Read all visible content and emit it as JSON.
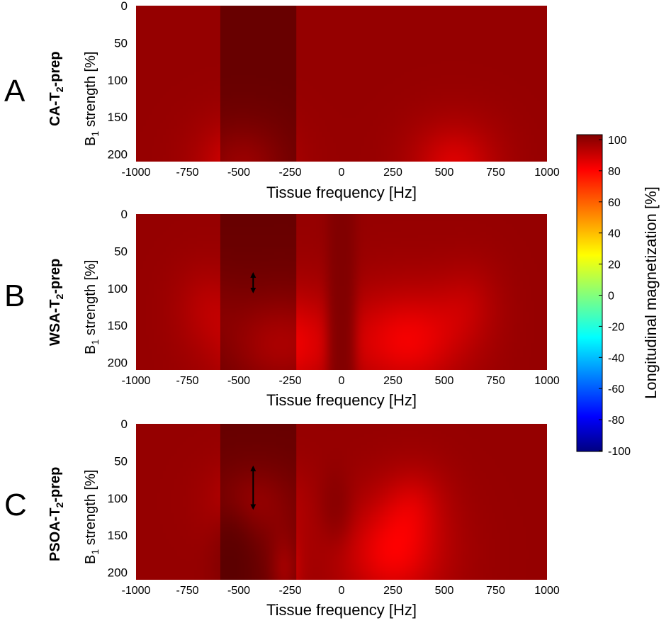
{
  "chart_data": [
    {
      "type": "heatmap",
      "panel_letter": "A",
      "row_label": {
        "main": "CA-T",
        "sub": "2",
        "suffix": "-prep"
      },
      "ylabel": {
        "main": "B",
        "sub": "1",
        "suffix": " strength [%]"
      },
      "xlabel": "Tissue frequency [Hz]",
      "xlim": [
        -1000,
        1000
      ],
      "ylim": [
        210,
        0
      ],
      "x_ticks": [
        -1000,
        -750,
        -500,
        -250,
        0,
        250,
        500,
        750,
        1000
      ],
      "y_ticks": [
        0,
        50,
        100,
        150,
        200
      ],
      "shaded_band_x": [
        -590,
        -220
      ],
      "arrow": null,
      "z_unit": "Longitudinal magnetization [%]",
      "features": [
        {
          "x": -480,
          "y": 215,
          "sx": 260,
          "sy": 70,
          "amp": -1.28
        },
        {
          "x": 550,
          "y": 215,
          "sx": 260,
          "sy": 70,
          "amp": -1.28
        }
      ]
    },
    {
      "type": "heatmap",
      "panel_letter": "B",
      "row_label": {
        "main": "WSA-T",
        "sub": "2",
        "suffix": "-prep"
      },
      "ylabel": {
        "main": "B",
        "sub": "1",
        "suffix": " strength [%]"
      },
      "xlabel": "Tissue frequency [Hz]",
      "xlim": [
        -1000,
        1000
      ],
      "ylim": [
        210,
        0
      ],
      "x_ticks": [
        -1000,
        -750,
        -500,
        -250,
        0,
        250,
        500,
        750,
        1000
      ],
      "y_ticks": [
        0,
        50,
        100,
        150,
        200
      ],
      "shaded_band_x": [
        -590,
        -220
      ],
      "arrow": {
        "x": -430,
        "y": [
          82,
          103
        ]
      },
      "z_unit": "Longitudinal magnetization [%]",
      "features": [
        {
          "x": -310,
          "y": 175,
          "sx": 330,
          "sy": 90,
          "amp": -1.45
        },
        {
          "x": -680,
          "y": 120,
          "sx": 170,
          "sy": 65,
          "amp": -0.55
        },
        {
          "x": 330,
          "y": 170,
          "sx": 330,
          "sy": 90,
          "amp": -1.45
        },
        {
          "x": 640,
          "y": 115,
          "sx": 170,
          "sy": 65,
          "amp": -0.55
        },
        {
          "x": 0,
          "y": 150,
          "sx": 55,
          "sy": 320,
          "amp": 2.6
        }
      ]
    },
    {
      "type": "heatmap",
      "panel_letter": "C",
      "row_label": {
        "main": "PSOA-T",
        "sub": "2",
        "suffix": "-prep"
      },
      "ylabel": {
        "main": "B",
        "sub": "1",
        "suffix": " strength [%]"
      },
      "xlabel": "Tissue frequency [Hz]",
      "xlim": [
        -1000,
        1000
      ],
      "ylim": [
        210,
        0
      ],
      "x_ticks": [
        -1000,
        -750,
        -500,
        -250,
        0,
        250,
        500,
        750,
        1000
      ],
      "y_ticks": [
        0,
        50,
        100,
        150,
        200
      ],
      "shaded_band_x": [
        -590,
        -220
      ],
      "arrow": {
        "x": -430,
        "y": [
          60,
          112
        ]
      },
      "z_unit": "Longitudinal magnetization [%]",
      "features": [
        {
          "x": -420,
          "y": 105,
          "sx": 240,
          "sy": 60,
          "amp": -1.15
        },
        {
          "x": -540,
          "y": 185,
          "sx": 90,
          "sy": 55,
          "amp": 1.3
        },
        {
          "x": -280,
          "y": 200,
          "sx": 90,
          "sy": 55,
          "amp": -1.2
        },
        {
          "x": 250,
          "y": 175,
          "sx": 320,
          "sy": 90,
          "amp": -1.5
        },
        {
          "x": 360,
          "y": 95,
          "sx": 180,
          "sy": 55,
          "amp": -0.6
        },
        {
          "x": -30,
          "y": 110,
          "sx": 70,
          "sy": 45,
          "amp": 1.0
        }
      ]
    }
  ],
  "colorbar": {
    "label": "Longitudinal magnetization [%]",
    "min": -100,
    "max": 100,
    "ticks": [
      100,
      80,
      60,
      40,
      20,
      0,
      -20,
      -40,
      -60,
      -80,
      -100
    ],
    "colormap": "jet",
    "jet_stops": [
      "#000080",
      "#0000ff",
      "#00ffff",
      "#ffff00",
      "#ff0000",
      "#800000"
    ]
  },
  "colors": {
    "axis": "#000000",
    "band_overlay": "#000000",
    "arrow": "#000000"
  }
}
